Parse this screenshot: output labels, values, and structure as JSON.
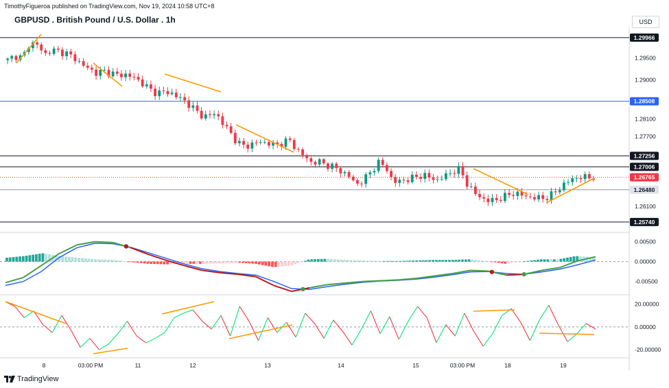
{
  "header": {
    "publisher": "TimothyFigueroa published on TradingView.com, Nov 19, 2024 10:58 UTC+8",
    "title": "GBPUSD . British Pound / U.S. Dollar . 1h",
    "currency": "USD",
    "logo_text": "TradingView"
  },
  "chart_data": [
    {
      "type": "candlestick",
      "name": "price",
      "x_ticks": [
        "8",
        "03:00 PM",
        "11",
        "12",
        "13",
        "14",
        "15",
        "03:00 PM",
        "18",
        "19"
      ],
      "y_ticks": [
        "1.29500",
        "1.29000",
        "1.28100",
        "1.27700",
        "1.26100"
      ],
      "ylim": [
        1.2555,
        1.302
      ],
      "horizontal_levels": [
        {
          "value": 1.29966,
          "label": "1.29966",
          "color": "#131722"
        },
        {
          "value": 1.28508,
          "label": "1.28508",
          "color": "#2962ff"
        },
        {
          "value": 1.27256,
          "label": "1.27256",
          "color": "#131722"
        },
        {
          "value": 1.27006,
          "label": "1.27006",
          "color": "#131722"
        },
        {
          "value": 1.26765,
          "label": "1.26765",
          "color": "#f23645"
        },
        {
          "value": 1.2648,
          "label": "1.26480",
          "color": "#9598a1"
        },
        {
          "value": 1.2574,
          "label": "1.25740",
          "color": "#131722"
        }
      ],
      "close_path": [
        1.2945,
        1.2955,
        1.295,
        1.2985,
        1.298,
        1.2958,
        1.2968,
        1.2965,
        1.296,
        1.295,
        1.2935,
        1.2925,
        1.2915,
        1.292,
        1.2915,
        1.291,
        1.2912,
        1.2905,
        1.2895,
        1.288,
        1.287,
        1.2872,
        1.287,
        1.286,
        1.285,
        1.2835,
        1.282,
        1.2815,
        1.2825,
        1.28,
        1.278,
        1.2755,
        1.2748,
        1.2752,
        1.2758,
        1.2755,
        1.275,
        1.2755,
        1.2762,
        1.274,
        1.2725,
        1.271,
        1.2712,
        1.2705,
        1.27,
        1.269,
        1.268,
        1.266,
        1.267,
        1.269,
        1.271,
        1.27,
        1.2665,
        1.2668,
        1.2672,
        1.2677,
        1.2682,
        1.2675,
        1.267,
        1.268,
        1.269,
        1.2695,
        1.266,
        1.264,
        1.2628,
        1.2622,
        1.2626,
        1.2632,
        1.264,
        1.2638,
        1.2632,
        1.263,
        1.2628,
        1.2632,
        1.2645,
        1.266,
        1.2672,
        1.2677,
        1.2676,
        1.2677
      ]
    },
    {
      "type": "macd",
      "name": "momentum",
      "y_ticks": [
        "0.00500",
        "0.00000",
        "-0.00500"
      ],
      "ylim": [
        -0.008,
        0.007
      ],
      "line1": [
        -0.0053,
        -0.004,
        -0.001,
        0.002,
        0.0042,
        0.005,
        0.0048,
        0.0035,
        0.0018,
        0.0003,
        -0.001,
        -0.0022,
        -0.0028,
        -0.0032,
        -0.0038,
        -0.006,
        -0.0075,
        -0.0066,
        -0.0058,
        -0.0054,
        -0.005,
        -0.0048,
        -0.0046,
        -0.0042,
        -0.0036,
        -0.003,
        -0.0022,
        -0.0024,
        -0.0034,
        -0.0032,
        -0.0022,
        -0.0015,
        0.0002,
        0.0012
      ],
      "line2": [
        -0.006,
        -0.005,
        -0.0025,
        0.001,
        0.0035,
        0.0046,
        0.0045,
        0.0036,
        0.0022,
        0.0008,
        -0.0006,
        -0.0018,
        -0.0025,
        -0.003,
        -0.0034,
        -0.005,
        -0.0068,
        -0.007,
        -0.0063,
        -0.0057,
        -0.0052,
        -0.0049,
        -0.0047,
        -0.0044,
        -0.0039,
        -0.0033,
        -0.0026,
        -0.0025,
        -0.003,
        -0.0032,
        -0.0026,
        -0.0019,
        -0.0008,
        0.0004
      ],
      "histogram_colors": [
        "#26a69a",
        "#b2dfdb",
        "#ff5252",
        "#ffcdd2"
      ]
    },
    {
      "type": "line",
      "name": "oscillator",
      "y_ticks": [
        "20.00000",
        "0.00000",
        "-20.00000"
      ],
      "ylim": [
        -26,
        27
      ],
      "values": [
        22,
        18,
        8,
        14,
        2,
        -5,
        10,
        -3,
        -18,
        -10,
        -20,
        -15,
        -6,
        5,
        -8,
        -14,
        -10,
        -5,
        8,
        12,
        15,
        5,
        -2,
        10,
        -8,
        18,
        5,
        -12,
        8,
        -5,
        4,
        -9,
        12,
        3,
        -10,
        6,
        -4,
        -16,
        -2,
        14,
        -6,
        9,
        -11,
        5,
        18,
        8,
        -14,
        2,
        -8,
        12,
        -4,
        -17,
        -6,
        10,
        16,
        4,
        -12,
        6,
        19,
        2,
        -13,
        -6,
        3,
        -2
      ],
      "colors": {
        "up": "#00e676",
        "down": "#f23645"
      }
    }
  ],
  "colors": {
    "bull_candle": "#089981",
    "bear_candle": "#f23645",
    "trend_lines": "#ff9800",
    "macd_line": "#43a047",
    "signal_line": "#2962ff",
    "macd_line_negative": "#b71c1c"
  }
}
